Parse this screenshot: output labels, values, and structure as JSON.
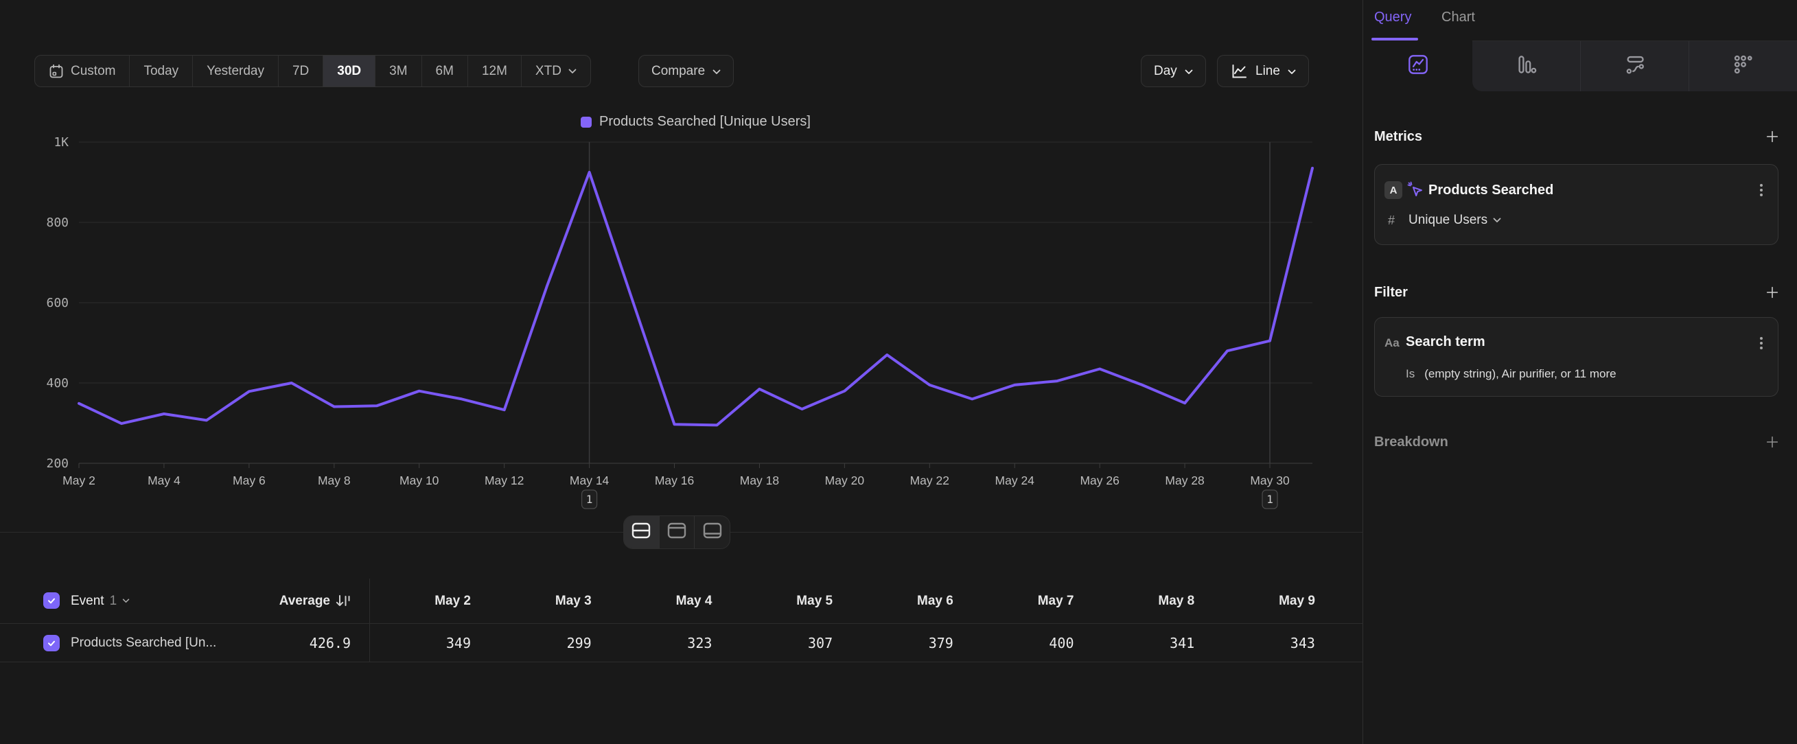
{
  "colors": {
    "accent_purple": "#8465f8",
    "line_purple": "#7a58f5",
    "checkbox_purple": "#7d66f8",
    "grid": "#2d2d2d",
    "axis_baseline": "#3e3e3e"
  },
  "topbar": {
    "date_ranges": [
      "Custom",
      "Today",
      "Yesterday",
      "7D",
      "30D",
      "3M",
      "6M",
      "12M",
      "XTD"
    ],
    "selected_range": "30D",
    "compare_label": "Compare",
    "granularity_label": "Day",
    "chart_type_label": "Line"
  },
  "chart_data": {
    "type": "line",
    "title": "",
    "legend_position": "top-center",
    "grid": true,
    "ylim": [
      200,
      1000
    ],
    "y_ticks": [
      {
        "label": "1K",
        "value": 1000
      },
      {
        "label": "800",
        "value": 800
      },
      {
        "label": "600",
        "value": 600
      },
      {
        "label": "400",
        "value": 400
      },
      {
        "label": "200",
        "value": 200
      }
    ],
    "x_label_every": 2,
    "categories": [
      "May 2",
      "May 3",
      "May 4",
      "May 5",
      "May 6",
      "May 7",
      "May 8",
      "May 9",
      "May 10",
      "May 11",
      "May 12",
      "May 13",
      "May 14",
      "May 15",
      "May 16",
      "May 17",
      "May 18",
      "May 19",
      "May 20",
      "May 21",
      "May 22",
      "May 23",
      "May 24",
      "May 25",
      "May 26",
      "May 27",
      "May 28",
      "May 29",
      "May 30",
      "May 31"
    ],
    "series": [
      {
        "name": "Products Searched [Unique Users]",
        "color": "#7a58f5",
        "values": [
          349,
          299,
          323,
          307,
          379,
          400,
          341,
          343,
          380,
          360,
          333,
          640,
          925,
          610,
          297,
          295,
          385,
          335,
          380,
          470,
          395,
          360,
          395,
          405,
          435,
          395,
          350,
          480,
          505,
          935
        ]
      }
    ],
    "annotations": [
      {
        "label": "1",
        "category": "May 14"
      },
      {
        "label": "1",
        "category": "May 30"
      }
    ]
  },
  "legend": {
    "label": "Products Searched [Unique Users]"
  },
  "layout_toggle": {
    "options": [
      "split-view",
      "chart-only-view",
      "table-only-view"
    ],
    "selected": "split-view"
  },
  "table": {
    "event_label": "Event",
    "event_count": "1",
    "average_label": "Average",
    "columns": [
      "May 2",
      "May 3",
      "May 4",
      "May 5",
      "May 6",
      "May 7",
      "May 8",
      "May 9"
    ],
    "rows": [
      {
        "name": "Products Searched [Un...",
        "checked": true,
        "average": "426.9",
        "values": [
          "349",
          "299",
          "323",
          "307",
          "379",
          "400",
          "341",
          "343"
        ]
      }
    ]
  },
  "sidebar": {
    "tabs": [
      {
        "label": "Query",
        "active": true
      },
      {
        "label": "Chart",
        "active": false
      }
    ],
    "view_tabs": [
      "insights",
      "funnels",
      "flows",
      "retention"
    ],
    "selected_view": "insights",
    "metrics": {
      "heading": "Metrics",
      "items": [
        {
          "letter": "A",
          "name": "Products Searched",
          "aggregation_symbol": "#",
          "aggregation": "Unique Users"
        }
      ]
    },
    "filter": {
      "heading": "Filter",
      "items": [
        {
          "icon": "Aa",
          "name": "Search term",
          "operator": "Is",
          "value": "(empty string), Air purifier, or 11 more"
        }
      ]
    },
    "breakdown": {
      "heading": "Breakdown"
    }
  }
}
